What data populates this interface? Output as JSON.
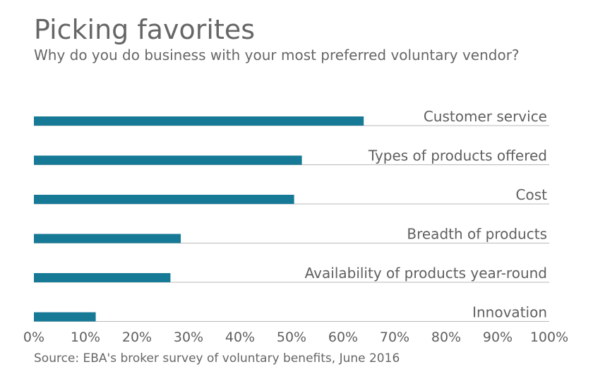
{
  "chart_data": {
    "type": "bar",
    "orientation": "horizontal",
    "title": "Picking favorites",
    "subtitle": "Why do you do business with your most preferred voluntary vendor?",
    "source": "Source: EBA's broker survey of voluntary benefits, June 2016",
    "categories": [
      "Customer service",
      "Types of products offered",
      "Cost",
      "Breadth of products",
      "Availability of products year-round",
      "Innovation"
    ],
    "values": [
      64,
      52,
      50.5,
      28.5,
      26.5,
      12
    ],
    "xlim": [
      0,
      100
    ],
    "xticks": [
      "0%",
      "10%",
      "20%",
      "30%",
      "40%",
      "50%",
      "60%",
      "70%",
      "80%",
      "90%",
      "100%"
    ],
    "bar_color": "#167a96",
    "grid": false
  }
}
